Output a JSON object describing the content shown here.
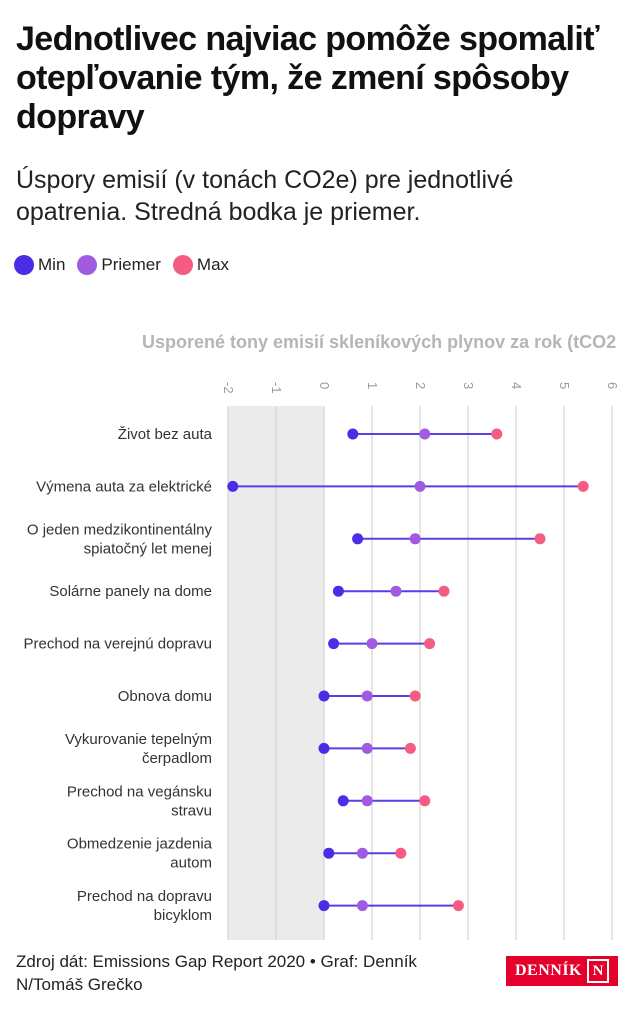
{
  "header": {
    "title": "Jednotlivec najviac pomôže spomaliť otepľovanie tým, že zmení spôsoby dopravy",
    "subtitle": "Úspory emisií (v tonách CO2e) pre jednotlivé opatrenia. Stredná bodka je priemer."
  },
  "legend": {
    "min_label": "Min",
    "avg_label": "Priemer",
    "max_label": "Max"
  },
  "colors": {
    "min": "#4a2ee6",
    "avg": "#a05be0",
    "max": "#f45c82",
    "line": "#5a3ee8",
    "negative_band": "#ebebeb",
    "grid": "#d4d4d4"
  },
  "chart_data": {
    "type": "dumbbell",
    "axis_title": "Usporené tony emisií skleníkových plynov za rok (tCO2",
    "xlim": [
      -2,
      6
    ],
    "ticks": [
      -2,
      -1,
      0,
      1,
      2,
      3,
      4,
      5,
      6
    ],
    "tick_labels": [
      "-2",
      "-1",
      "0",
      "1",
      "2",
      "3",
      "4",
      "5",
      "6"
    ],
    "categories": [
      [
        "Život bez auta"
      ],
      [
        "Výmena auta za elektrické"
      ],
      [
        "O jeden medzikontinentálny",
        "spiatočný let menej"
      ],
      [
        "Solárne panely na dome"
      ],
      [
        "Prechod na verejnú dopravu"
      ],
      [
        "Obnova domu"
      ],
      [
        "Vykurovanie tepelným",
        "čerpadlom"
      ],
      [
        "Prechod na vegánsku",
        "stravu"
      ],
      [
        "Obmedzenie jazdenia",
        "autom"
      ],
      [
        "Prechod na dopravu",
        "bicyklom"
      ]
    ],
    "series": [
      {
        "name": "Min",
        "values": [
          0.6,
          -1.9,
          0.7,
          0.3,
          0.2,
          0.0,
          0.0,
          0.4,
          0.1,
          0.0
        ]
      },
      {
        "name": "Priemer",
        "values": [
          2.1,
          2.0,
          1.9,
          1.5,
          1.0,
          0.9,
          0.9,
          0.9,
          0.8,
          0.8
        ]
      },
      {
        "name": "Max",
        "values": [
          3.6,
          5.4,
          4.5,
          2.5,
          2.2,
          1.9,
          1.8,
          2.1,
          1.6,
          2.8
        ]
      }
    ],
    "shaded_range": [
      -2,
      0
    ],
    "grid": true,
    "legend_position": "top-left"
  },
  "footer": {
    "source": "Zdroj dát: Emissions Gap Report 2020 • Graf: Denník N/Tomáš Grečko",
    "logo_text": "DENNÍK",
    "logo_mark": "N"
  }
}
